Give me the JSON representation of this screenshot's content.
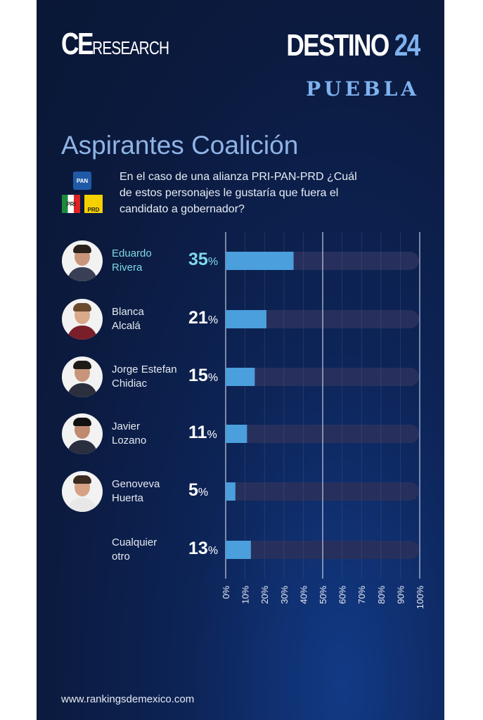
{
  "header": {
    "brand_ce": "CE",
    "brand_research": "RESEARCH",
    "destino": "DESTINO",
    "destino_num": "24",
    "region": "PUEBLA"
  },
  "title": "Aspirantes Coalición",
  "question": "En el caso de una alianza PRI-PAN-PRD ¿Cuál de estos personajes le gustaría que fuera el candidato a gobernador?",
  "parties": [
    "PAN",
    "PRI",
    "PRD"
  ],
  "footer": "www.rankingsdemexico.com",
  "colors": {
    "background": "#0b1a3e",
    "bar": "#4a9fdc",
    "track": "#27305c",
    "title": "#8fb4e6",
    "highlight_name": "#7fd9e6",
    "accent": "#7fb2ee"
  },
  "chart_data": {
    "type": "bar",
    "orientation": "horizontal",
    "categories": [
      "Eduardo Rivera",
      "Blanca Alcalá",
      "Jorge Estefan Chidiac",
      "Javier Lozano",
      "Genoveva Huerta",
      "Cualquier otro"
    ],
    "name_lines": [
      [
        "Eduardo",
        "Rivera"
      ],
      [
        "Blanca",
        "Alcalá"
      ],
      [
        "Jorge Estefan",
        "Chidiac"
      ],
      [
        "Javier",
        "Lozano"
      ],
      [
        "Genoveva",
        "Huerta"
      ],
      [
        "Cualquier",
        "otro"
      ]
    ],
    "values": [
      35,
      21,
      15,
      11,
      5,
      13
    ],
    "value_labels": [
      "35",
      "21",
      "15",
      "11",
      "5",
      "13"
    ],
    "unit": "%",
    "xlim": [
      0,
      100
    ],
    "ticks": [
      "0%",
      "10%",
      "20%",
      "30%",
      "40%",
      "50%",
      "60%",
      "70%",
      "80%",
      "90%",
      "100%"
    ],
    "grid": true
  }
}
